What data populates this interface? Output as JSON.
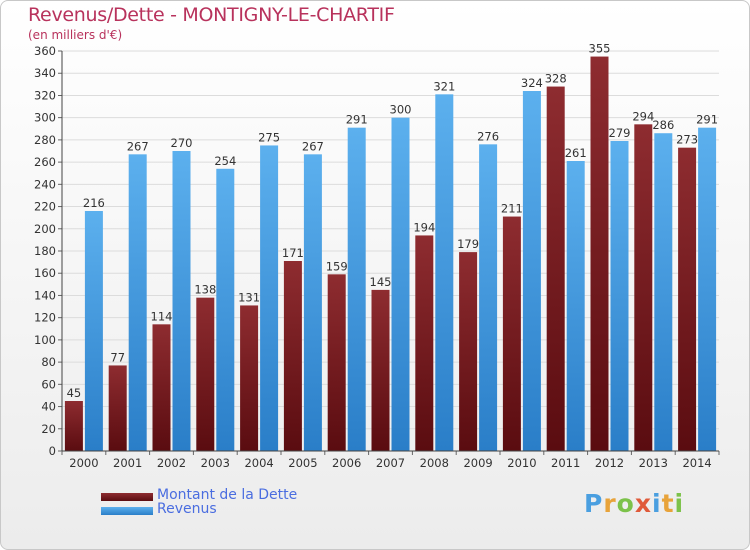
{
  "header": {
    "title": "Revenus/Dette - MONTIGNY-LE-CHARTIF",
    "subtitle": "(en milliers d'€)"
  },
  "legend": {
    "items": [
      {
        "label": "Montant de la Dette",
        "color": "#7a1f24"
      },
      {
        "label": "Revenus",
        "color": "#3f9be0"
      }
    ]
  },
  "logo": {
    "letters": [
      "P",
      "r",
      "o",
      "x",
      "i",
      "t",
      "i"
    ],
    "colors": [
      "#4a9fe0",
      "#e8a33a",
      "#7cc24a",
      "#e05a3a",
      "#4a9fe0",
      "#e8a33a",
      "#7cc24a"
    ]
  },
  "chart_data": {
    "type": "bar",
    "title": "Revenus/Dette - MONTIGNY-LE-CHARTIF",
    "ylabel": "(en milliers d'€)",
    "categories": [
      "2000",
      "2001",
      "2002",
      "2003",
      "2004",
      "2005",
      "2006",
      "2007",
      "2008",
      "2009",
      "2010",
      "2011",
      "2012",
      "2013",
      "2014"
    ],
    "series": [
      {
        "name": "Montant de la Dette",
        "color": "#7a1f24",
        "values": [
          45,
          77,
          114,
          138,
          131,
          171,
          159,
          145,
          194,
          179,
          211,
          328,
          355,
          294,
          273
        ]
      },
      {
        "name": "Revenus",
        "color": "#3f9be0",
        "values": [
          216,
          267,
          270,
          254,
          275,
          267,
          291,
          300,
          321,
          276,
          324,
          261,
          279,
          286,
          291
        ]
      }
    ],
    "ylim": [
      0,
      360
    ],
    "yticks": [
      0,
      20,
      40,
      60,
      80,
      100,
      120,
      140,
      160,
      180,
      200,
      220,
      240,
      260,
      280,
      300,
      320,
      340,
      360
    ],
    "grid": true
  }
}
